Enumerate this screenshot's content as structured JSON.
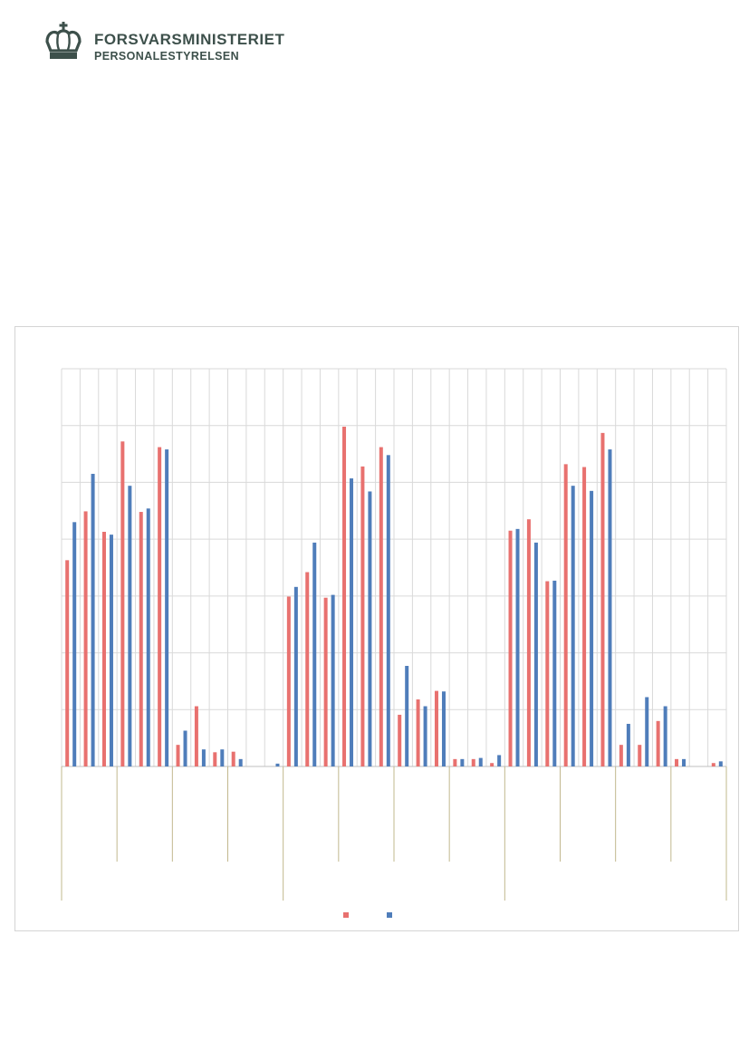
{
  "header": {
    "org_name": "FORSVARSMINISTERIET",
    "org_sub": "PERSONALESTYRELSEN",
    "crest_icon": "crown-icon",
    "brand_color": "#3d504b"
  },
  "chart_data": {
    "type": "bar",
    "title": "",
    "xlabel": "",
    "ylabel": "",
    "ylim": [
      0,
      7
    ],
    "grid": true,
    "legend_position": "bottom",
    "colors": [
      "#e8716f",
      "#4f7dba"
    ],
    "groups": 3,
    "slots_per_group": 12,
    "series": [
      {
        "name": "",
        "values": [
          3.63,
          4.49,
          4.13,
          5.72,
          4.48,
          5.62,
          0.38,
          1.06,
          0.25,
          0.26,
          0,
          0,
          2.99,
          3.42,
          2.97,
          5.98,
          5.28,
          5.62,
          0.91,
          1.18,
          1.33,
          0.13,
          0.13,
          0.06,
          4.15,
          4.35,
          3.26,
          5.32,
          5.27,
          5.87,
          0.38,
          0.38,
          0.8,
          0.13,
          0,
          0.06
        ]
      },
      {
        "name": "",
        "values": [
          4.3,
          5.15,
          4.08,
          4.94,
          4.54,
          5.58,
          0.63,
          0.3,
          0.3,
          0.13,
          0,
          0.05,
          3.16,
          3.94,
          3.02,
          5.07,
          4.84,
          5.48,
          1.77,
          1.06,
          1.32,
          0.13,
          0.15,
          0.2,
          4.18,
          3.94,
          3.27,
          4.94,
          4.85,
          5.58,
          0.75,
          1.22,
          1.06,
          0.13,
          0,
          0.09
        ]
      }
    ]
  }
}
